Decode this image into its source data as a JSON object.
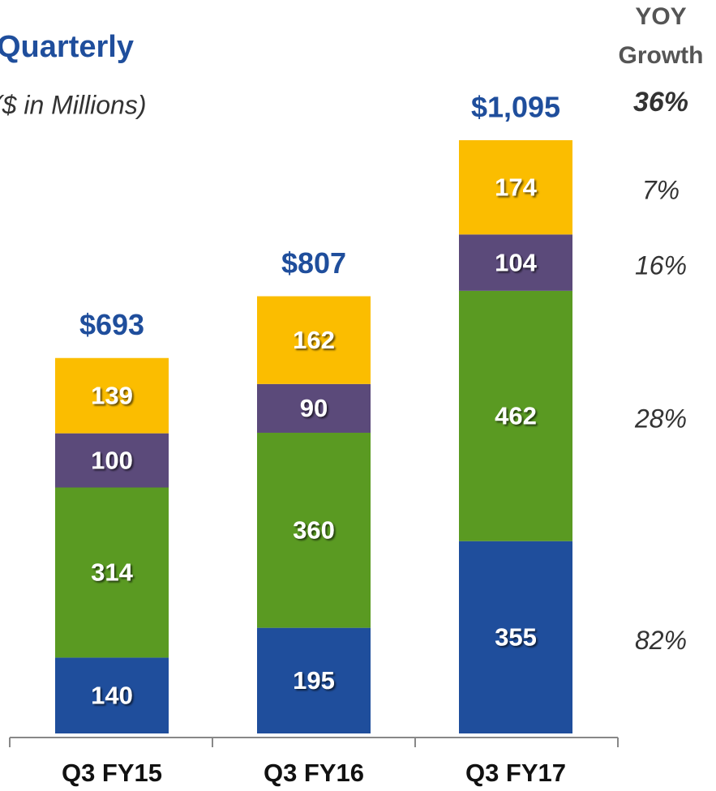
{
  "chart_data": {
    "type": "stacked_bar",
    "title": "Quarterly",
    "subtitle": "($ in Millions)",
    "categories": [
      "Q3 FY15",
      "Q3 FY16",
      "Q3 FY17"
    ],
    "series": [
      {
        "color": "#1f4e9c",
        "values": [
          140,
          195,
          355
        ],
        "growth": 82,
        "growth_label": "82%"
      },
      {
        "color": "#5a9a22",
        "values": [
          314,
          360,
          462
        ],
        "growth": 28,
        "growth_label": "28%"
      },
      {
        "color": "#5b4a7a",
        "values": [
          100,
          90,
          104
        ],
        "growth": 16,
        "growth_label": "16%"
      },
      {
        "color": "#fbbd00",
        "values": [
          139,
          162,
          174
        ],
        "growth": 7,
        "growth_label": "7%"
      }
    ],
    "totals": {
      "values": [
        693,
        807,
        1095
      ],
      "value_labels": [
        "$693",
        "$807",
        "$1,095"
      ]
    },
    "growth_title": [
      "YOY",
      "Growth"
    ],
    "total_growth": {
      "value": 36,
      "label": "36%"
    },
    "ylim": [
      0,
      1095
    ]
  }
}
